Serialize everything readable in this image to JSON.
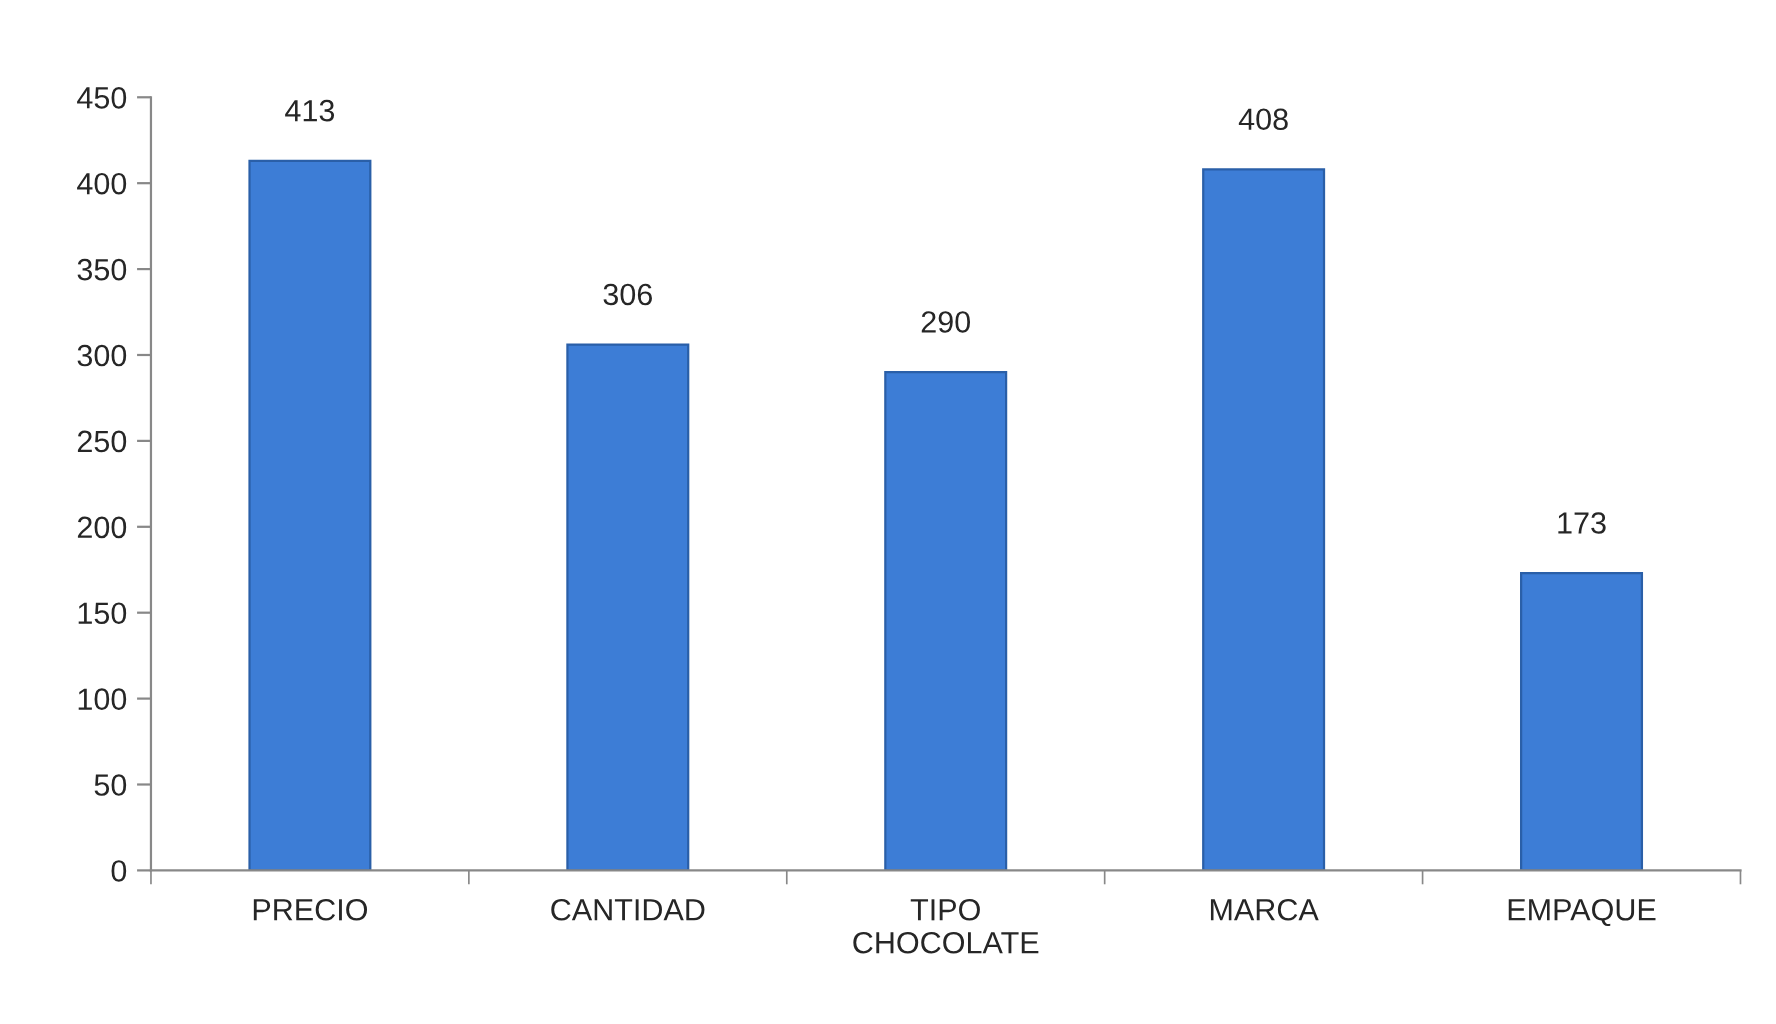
{
  "chart_data": {
    "type": "bar",
    "categories": [
      "PRECIO",
      "CANTIDAD",
      "TIPO CHOCOLATE",
      "MARCA",
      "EMPAQUE"
    ],
    "values": [
      413,
      306,
      290,
      408,
      173
    ],
    "color": "#3d7dd6",
    "ylim": [
      0,
      450
    ],
    "yticks": [
      0,
      50,
      100,
      150,
      200,
      250,
      300,
      350,
      400,
      450
    ],
    "data_labels": true,
    "grid": false,
    "legend": false
  }
}
